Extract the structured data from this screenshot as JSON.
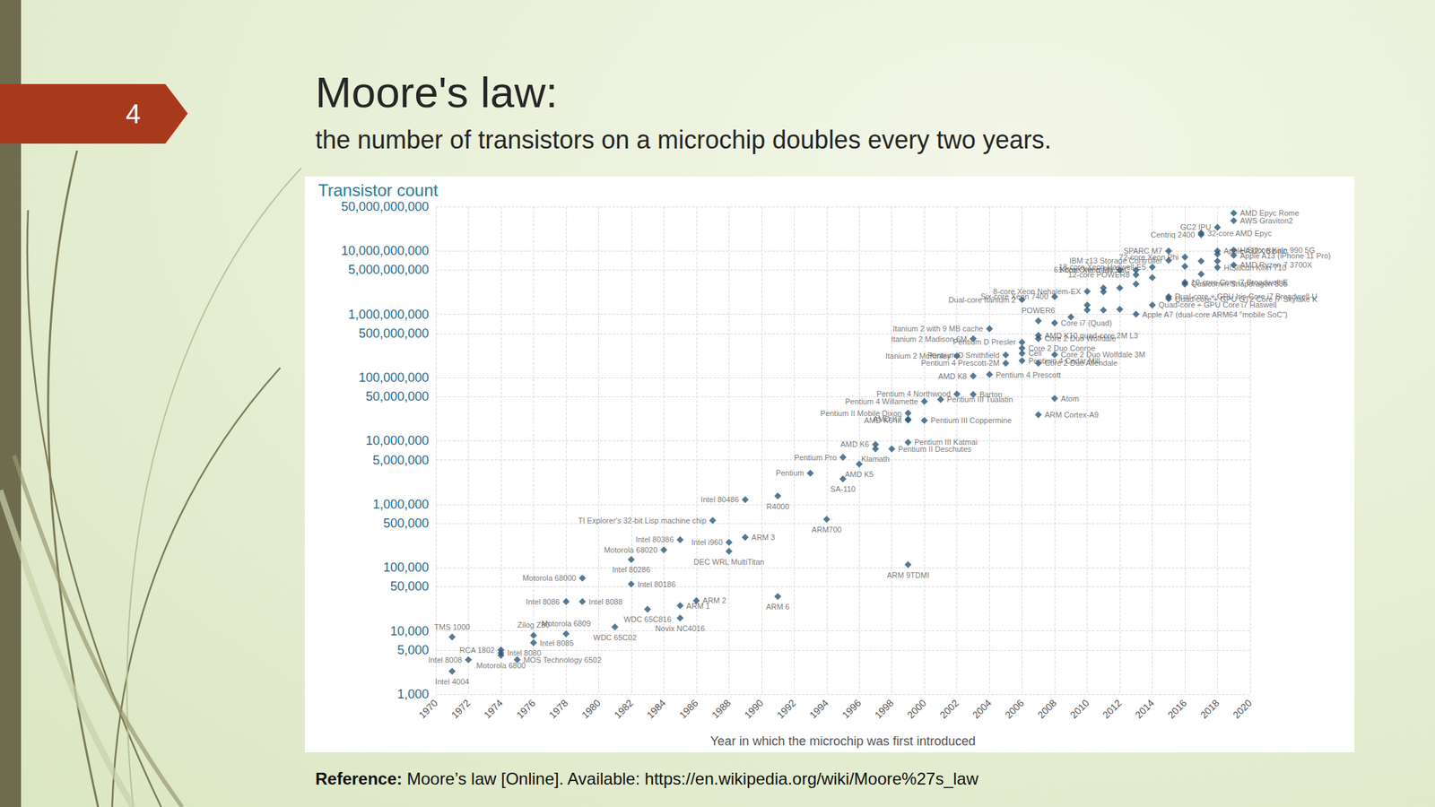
{
  "slide": {
    "number": "4",
    "title": "Moore's law:",
    "subtitle": "the number of transistors on a microchip doubles every two years.",
    "reference_label": "Reference:",
    "reference_text": "Moore’s law [Online]. Available: https://en.wikipedia.org/wiki/Moore%27s_law"
  },
  "chart_data": {
    "type": "scatter",
    "title": "Transistor count",
    "xlabel": "Year in which the microchip was first introduced",
    "color": "#2c5878",
    "marker": "diamond",
    "log": "y",
    "grid": true,
    "xlim": [
      1970,
      2020
    ],
    "ylim": [
      1000,
      50000000000
    ],
    "xticks": [
      1970,
      1972,
      1974,
      1976,
      1978,
      1980,
      1982,
      1984,
      1986,
      1988,
      1990,
      1992,
      1994,
      1996,
      1998,
      2000,
      2002,
      2004,
      2006,
      2008,
      2010,
      2012,
      2014,
      2016,
      2018,
      2020
    ],
    "yticks": [
      {
        "value": 1000,
        "label": "1,000"
      },
      {
        "value": 5000,
        "label": "5,000"
      },
      {
        "value": 10000,
        "label": "10,000"
      },
      {
        "value": 50000,
        "label": "50,000"
      },
      {
        "value": 100000,
        "label": "100,000"
      },
      {
        "value": 500000,
        "label": "500,000"
      },
      {
        "value": 1000000,
        "label": "1,000,000"
      },
      {
        "value": 5000000,
        "label": "5,000,000"
      },
      {
        "value": 10000000,
        "label": "10,000,000"
      },
      {
        "value": 50000000,
        "label": "50,000,000"
      },
      {
        "value": 100000000,
        "label": "100,000,000"
      },
      {
        "value": 500000000,
        "label": "500,000,000"
      },
      {
        "value": 1000000000,
        "label": "1,000,000,000"
      },
      {
        "value": 5000000000,
        "label": "5,000,000,000"
      },
      {
        "value": 10000000000,
        "label": "10,000,000,000"
      },
      {
        "value": 50000000000,
        "label": "50,000,000,000"
      }
    ],
    "x": [
      1971,
      1972,
      1971,
      1974,
      1974,
      1974,
      1975,
      1976,
      1976,
      1978,
      1978,
      1979,
      1979,
      1981,
      1982,
      1982,
      1983,
      1984,
      1985,
      1985,
      1985,
      1986,
      1987,
      1988,
      1988,
      1989,
      1989,
      1991,
      1991,
      1993,
      1994,
      1995,
      1995,
      1996,
      1997,
      1997,
      1998,
      1999,
      1999,
      1999,
      1999,
      1999,
      2000,
      2000,
      2001,
      2002,
      2003,
      2003,
      2004,
      2002,
      2005,
      2005,
      2003,
      2004,
      2006,
      2006,
      2006,
      2006,
      2007,
      2008,
      2007,
      2007,
      2008,
      2007,
      2008,
      2007,
      2006,
      2008,
      2010,
      2013,
      2012,
      2013,
      2014,
      2015,
      2015,
      2016,
      2017,
      2018,
      2017,
      2019,
      2019,
      2018,
      2019,
      2019,
      2019,
      2018,
      2016,
      2016,
      2015,
      2015,
      2014,
      2013,
      2010,
      2010,
      2011,
      2011,
      2012,
      2012,
      2011,
      2013,
      2014,
      2016,
      2017,
      2018,
      2018,
      2017,
      2009
    ],
    "values": [
      2300,
      3500,
      8000,
      4100,
      4500,
      5000,
      3510,
      8500,
      6500,
      9000,
      29000,
      29000,
      68000,
      11500,
      55000,
      134000,
      22000,
      190000,
      25000,
      16000,
      275000,
      30000,
      553000,
      250000,
      180000,
      300000,
      1180235,
      1350000,
      35000,
      3100000,
      578977,
      2500000,
      5500000,
      4300000,
      8800000,
      7500000,
      7500000,
      9500000,
      21300000,
      22000000,
      27400000,
      111000,
      21000000,
      42000000,
      45000000,
      55000000,
      54300000,
      105900000,
      112000000,
      220000000,
      169000000,
      228000000,
      410000000,
      592000000,
      362000000,
      241000000,
      291000000,
      184000000,
      169000000,
      230000000,
      411000000,
      463000000,
      731000000,
      789000000,
      47000000,
      26000000,
      1700000000,
      1900000000,
      2300000000,
      4200000000,
      5000000000,
      5000000000,
      5560000000,
      7100000000,
      10000000000,
      8000000000,
      18000000000,
      23600000000,
      19200000000,
      39540000000,
      30000000000,
      10000000000,
      10300000000,
      8500000000,
      5990000000,
      5500000000,
      3200000000,
      3000000000,
      1900000000,
      1750000000,
      1400000000,
      1000000000,
      1170000000,
      1400000000,
      1160000000,
      2270000000,
      1200000000,
      2600000000,
      2600000000,
      3000000000,
      3800000000,
      5700000000,
      6900000000,
      6900000000,
      8900000000,
      4300000000,
      904000000
    ],
    "point_labels": [
      "Intel 4004",
      "Intel 8008",
      "TMS 1000",
      "Motorola 6800",
      "Intel 8080",
      "RCA 1802",
      "MOS Technology 6502",
      "Zilog Z80",
      "Intel 8085",
      "Motorola 6809",
      "Intel 8086",
      "Intel 8088",
      "Motorola 68000",
      "WDC 65C02",
      "Intel 80186",
      "Intel 80286",
      "WDC 65C816",
      "Motorola 68020",
      "ARM 1",
      "Novix NC4016",
      "Intel 80386",
      "ARM 2",
      "TI Explorer's 32-bit Lisp machine chip",
      "Intel i960",
      "DEC WRL MultiTitan",
      "ARM 3",
      "Intel 80486",
      "R4000",
      "ARM 6",
      "Pentium",
      "ARM700",
      "SA-110",
      "Pentium Pro",
      "AMD K5",
      "AMD K6",
      "Klamath",
      "Pentium II Deschutes",
      "Pentium III Katmai",
      "AMD K6-III",
      "AMD K7",
      "Pentium II Mobile Dixon",
      "ARM 9TDMI",
      "Pentium III Coppermine",
      "Pentium 4 Willamette",
      "Pentium III Tualatin",
      "Pentium 4 Northwood",
      "Barton",
      "AMD K8",
      "Pentium 4 Prescott",
      "Itanium 2 McKinley",
      "Pentium 4 Prescott-2M",
      "Pentium D Smithfield",
      "Itanium 2 Madison 6M",
      "Itanium 2 with 9 MB cache",
      "Pentium D Presler",
      "Cell",
      "Core 2 Duo Conroe",
      "Pentium 4 Cedar Mill",
      "Core 2 Duo Allendale",
      "Core 2 Duo Wolfdale 3M",
      "Core 2 Duo Wolfdale",
      "AMD K10 quad-core 2M L3",
      "Core i7 (Quad)",
      "POWER6",
      "Atom",
      "ARM Cortex-A9",
      "Dual-core Itanium 2",
      "Six-core Xeon 7400",
      "8-core Xeon Nehalem-EX",
      "12-core POWER8",
      "61-core Xeon Phi",
      "Xbox One main SoC",
      "18-core Xeon Haswell-E5",
      "IBM z13 Storage Controller",
      "SPARC M7",
      "72-core Xeon Phi",
      "Centriq 2400",
      "GC2 IPU",
      "32-core AMD Epyc",
      "AMD Epyc Rome",
      "AWS Graviton2",
      "Apple A12X Bionic",
      "HiSilicon Kirin 990 5G",
      "Apple A13 (iPhone 11 Pro)",
      "AMD Ryzen 7 3700X",
      "HiSilicon Kirin 710",
      "10-core Core i7 Broadwell-E",
      "Qualcomm Snapdragon 835",
      "Dual-core + GPU Iris Core i7 Broadwell-U",
      "Quad-core + GPU GT2 Core i7 Skylake K",
      "Quad-core + GPU Core i7 Haswell",
      "Apple A7 (dual-core ARM64 \"mobile SoC\")",
      null,
      null,
      null,
      null,
      null,
      null,
      null,
      null,
      null,
      null,
      null,
      null,
      null,
      null,
      null
    ]
  }
}
